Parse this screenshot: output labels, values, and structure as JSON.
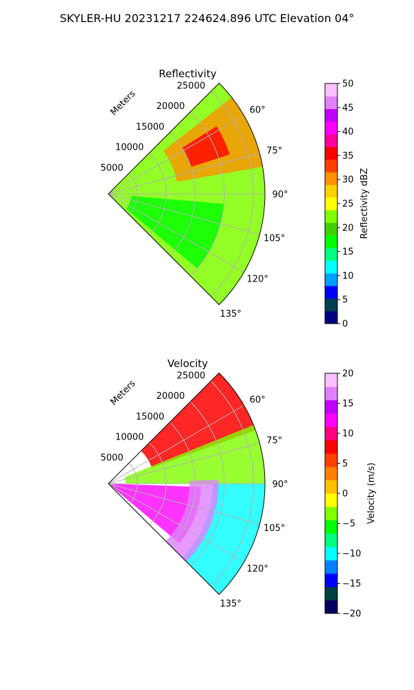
{
  "title": "SKYLER-HU  20231217  224624.896 UTC Elevation 04°",
  "chart_data": [
    {
      "type": "heatmap",
      "subtype": "polar-sector (PPI)",
      "title": "Reflectivity",
      "radial_label": "Meters",
      "range_ticks": [
        "5000",
        "10000",
        "15000",
        "20000",
        "25000"
      ],
      "range_values": [
        5000,
        10000,
        15000,
        20000,
        25000
      ],
      "angle_ticks": [
        "60°",
        "75°",
        "90°",
        "105°",
        "120°",
        "135°"
      ],
      "angle_values": [
        60,
        75,
        90,
        105,
        120,
        135
      ],
      "azimuth_range_deg": [
        45,
        135
      ],
      "max_range_m": 27000,
      "grid": true,
      "colorbar": {
        "label": "Reflectivity dBZ",
        "min": 0,
        "max": 50,
        "ticks": [
          "0",
          "5",
          "10",
          "15",
          "20",
          "25",
          "30",
          "35",
          "40",
          "45",
          "50"
        ],
        "colors": [
          "#000080",
          "#004050",
          "#0000ff",
          "#00a0ff",
          "#00ffff",
          "#00ff80",
          "#00ff00",
          "#40d000",
          "#80ff00",
          "#ffff00",
          "#ffd000",
          "#ff9000",
          "#ff4000",
          "#ff0000",
          "#ff00a0",
          "#ff00ff",
          "#c000ff",
          "#e080ff",
          "#ffc0ff"
        ]
      },
      "field_regions": [
        {
          "az": [
            45,
            135
          ],
          "r": [
            0,
            27000
          ],
          "value": 22,
          "desc": "widespread weak echo"
        },
        {
          "az": [
            52,
            80
          ],
          "r": [
            12000,
            27000
          ],
          "value": 30,
          "desc": "northern moderate band"
        },
        {
          "az": [
            58,
            72
          ],
          "r": [
            15000,
            22000
          ],
          "value": 36,
          "desc": "embedded strong cores"
        },
        {
          "az": [
            95,
            130
          ],
          "r": [
            4000,
            20000
          ],
          "value": 18,
          "desc": "southern weaker band"
        }
      ]
    },
    {
      "type": "heatmap",
      "subtype": "polar-sector (PPI)",
      "title": "Velocity",
      "radial_label": "Meters",
      "range_ticks": [
        "5000",
        "10000",
        "15000",
        "20000",
        "25000"
      ],
      "range_values": [
        5000,
        10000,
        15000,
        20000,
        25000
      ],
      "angle_ticks": [
        "60°",
        "75°",
        "90°",
        "105°",
        "120°",
        "135°"
      ],
      "angle_values": [
        60,
        75,
        90,
        105,
        120,
        135
      ],
      "azimuth_range_deg": [
        45,
        135
      ],
      "max_range_m": 27000,
      "grid": true,
      "colorbar": {
        "label": "Velocity (m/s)",
        "min": -20,
        "max": 20,
        "ticks": [
          "−20",
          "−15",
          "−10",
          "−5",
          "0",
          "5",
          "10",
          "15",
          "20"
        ],
        "colors": [
          "#000060",
          "#004040",
          "#0000ff",
          "#0080ff",
          "#00ffff",
          "#00ff80",
          "#00ff00",
          "#80ff00",
          "#ffff00",
          "#ffc000",
          "#ff8000",
          "#ff4000",
          "#ff0000",
          "#ff0080",
          "#ff00ff",
          "#c000ff",
          "#e080ff",
          "#ffc0ff"
        ]
      },
      "field_regions": [
        {
          "az": [
            45,
            70
          ],
          "r": [
            8000,
            27000
          ],
          "value": 8,
          "desc": "outbound north"
        },
        {
          "az": [
            68,
            90
          ],
          "r": [
            3000,
            27000
          ],
          "value": -4,
          "desc": "near-zero to inbound"
        },
        {
          "az": [
            90,
            135
          ],
          "r": [
            18000,
            27000
          ],
          "value": -10,
          "desc": "inbound far south-east"
        },
        {
          "az": [
            92,
            130
          ],
          "r": [
            0,
            16000
          ],
          "value": 12,
          "desc": "strong outbound core"
        },
        {
          "az": [
            88,
            135
          ],
          "r": [
            14000,
            19000
          ],
          "value": 16,
          "desc": "aliased magenta edge"
        }
      ]
    }
  ]
}
